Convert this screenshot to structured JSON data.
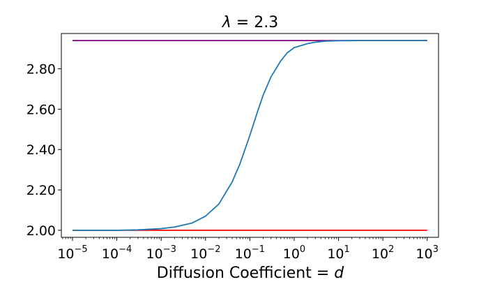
{
  "chart_data": {
    "type": "line",
    "title": "λ =  2.3",
    "title_parts": {
      "symbol": "λ",
      "rest": " =  2.3"
    },
    "xlabel": "Diffusion Coefficient = d",
    "xlabel_parts": {
      "text": "Diffusion Coefficient = ",
      "var": "d"
    },
    "ylabel": "",
    "x_scale": "log",
    "xlim": [
      5.6e-06,
      1800
    ],
    "ylim": [
      1.965,
      2.975
    ],
    "grid": false,
    "legend": "none",
    "x_ticks": [
      {
        "value": 1e-05,
        "base": "10",
        "exp": "−5"
      },
      {
        "value": 0.0001,
        "base": "10",
        "exp": "−4"
      },
      {
        "value": 0.001,
        "base": "10",
        "exp": "−3"
      },
      {
        "value": 0.01,
        "base": "10",
        "exp": "−2"
      },
      {
        "value": 0.1,
        "base": "10",
        "exp": "−1"
      },
      {
        "value": 1,
        "base": "10",
        "exp": "0"
      },
      {
        "value": 10,
        "base": "10",
        "exp": "1"
      },
      {
        "value": 100,
        "base": "10",
        "exp": "2"
      },
      {
        "value": 1000,
        "base": "10",
        "exp": "3"
      }
    ],
    "y_ticks": [
      {
        "value": 2.0,
        "label": "2.00"
      },
      {
        "value": 2.2,
        "label": "2.20"
      },
      {
        "value": 2.4,
        "label": "2.40"
      },
      {
        "value": 2.6,
        "label": "2.60"
      },
      {
        "value": 2.8,
        "label": "2.80"
      }
    ],
    "series": [
      {
        "color": "#ff0000",
        "x": [
          1e-05,
          1000
        ],
        "y": [
          2.0,
          2.0
        ]
      },
      {
        "color": "#800080",
        "x": [
          1e-05,
          1000
        ],
        "y": [
          2.94,
          2.94
        ]
      },
      {
        "color": "#1f77b4",
        "x": [
          1e-05,
          0.0001,
          0.0003,
          0.001,
          0.002,
          0.005,
          0.01,
          0.02,
          0.04,
          0.06,
          0.1,
          0.15,
          0.2,
          0.3,
          0.5,
          0.7,
          1,
          2,
          3,
          5,
          10,
          30,
          100,
          1000
        ],
        "y": [
          2.0,
          2.0,
          2.002,
          2.008,
          2.016,
          2.036,
          2.07,
          2.13,
          2.24,
          2.33,
          2.47,
          2.59,
          2.67,
          2.76,
          2.84,
          2.88,
          2.905,
          2.925,
          2.932,
          2.937,
          2.939,
          2.94,
          2.94,
          2.94
        ]
      }
    ]
  }
}
